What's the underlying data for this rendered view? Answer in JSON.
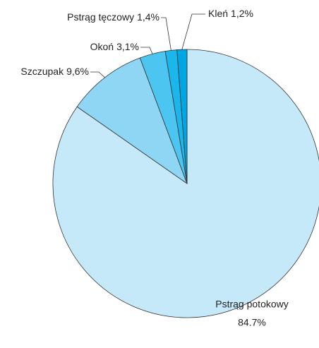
{
  "chart_data": {
    "type": "pie",
    "categories": [
      "Pstrąg potokowy",
      "Szczupak",
      "Okoń",
      "Pstrąg tęczowy",
      "Kleń"
    ],
    "values": [
      84.7,
      9.6,
      3.1,
      1.4,
      1.2
    ],
    "value_labels": [
      "84.7%",
      "9,6%",
      "3,1%",
      "1,4%",
      "1,2%"
    ],
    "colors": [
      "#c6e9f9",
      "#8fd6f5",
      "#4cc6f1",
      "#1ab6ec",
      "#00a5e3"
    ]
  }
}
